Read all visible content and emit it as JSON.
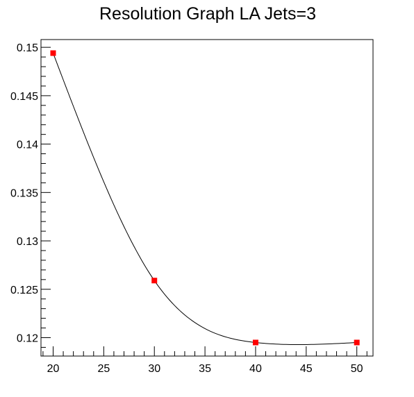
{
  "chart_data": {
    "type": "scatter",
    "title": "Resolution Graph LA Jets=3",
    "xlabel": "",
    "ylabel": "",
    "xlim": [
      18.8,
      51.6
    ],
    "ylim": [
      0.1181,
      0.1508
    ],
    "x_ticks": [
      20,
      25,
      30,
      35,
      40,
      45,
      50
    ],
    "y_ticks": [
      0.12,
      0.125,
      0.13,
      0.135,
      0.14,
      0.145,
      0.15
    ],
    "x_tick_labels": [
      "20",
      "25",
      "30",
      "35",
      "40",
      "45",
      "50"
    ],
    "y_tick_labels": [
      "0.12",
      "0.125",
      "0.13",
      "0.135",
      "0.14",
      "0.145",
      "0.15"
    ],
    "grid": false,
    "series": [
      {
        "x": [
          20,
          30,
          40,
          50
        ],
        "y": [
          0.1494,
          0.1259,
          0.1195,
          0.1195
        ],
        "marker": "square",
        "marker_color": "#ff0000",
        "line": "smooth",
        "line_color": "#000000"
      }
    ]
  }
}
